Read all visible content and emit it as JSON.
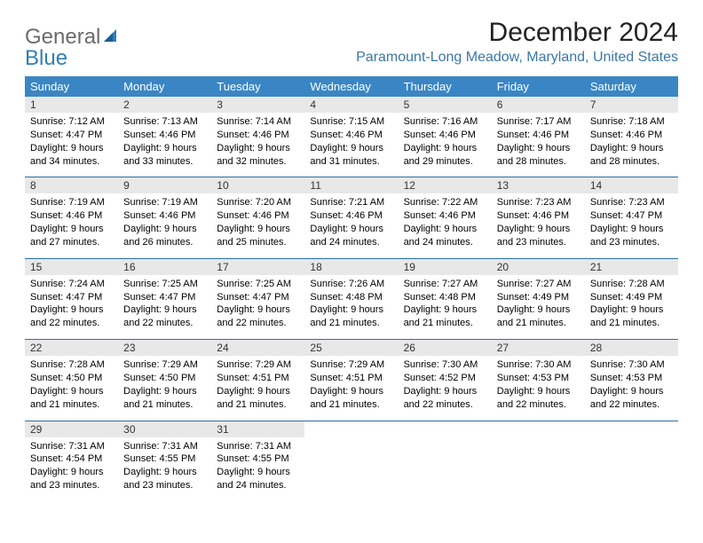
{
  "logo": {
    "general": "General",
    "blue": "Blue"
  },
  "title": "December 2024",
  "location": "Paramount-Long Meadow, Maryland, United States",
  "colors": {
    "header_bg": "#3a86c4",
    "header_text": "#ffffff",
    "daynum_bg": "#e8e8e8",
    "row_border": "#2d6ea8",
    "location_color": "#3b77a8",
    "logo_gray": "#6b6b6b",
    "logo_blue": "#2f7fb6"
  },
  "weekdays": [
    "Sunday",
    "Monday",
    "Tuesday",
    "Wednesday",
    "Thursday",
    "Friday",
    "Saturday"
  ],
  "weeks": [
    [
      {
        "n": "1",
        "sunrise": "Sunrise: 7:12 AM",
        "sunset": "Sunset: 4:47 PM",
        "day1": "Daylight: 9 hours",
        "day2": "and 34 minutes."
      },
      {
        "n": "2",
        "sunrise": "Sunrise: 7:13 AM",
        "sunset": "Sunset: 4:46 PM",
        "day1": "Daylight: 9 hours",
        "day2": "and 33 minutes."
      },
      {
        "n": "3",
        "sunrise": "Sunrise: 7:14 AM",
        "sunset": "Sunset: 4:46 PM",
        "day1": "Daylight: 9 hours",
        "day2": "and 32 minutes."
      },
      {
        "n": "4",
        "sunrise": "Sunrise: 7:15 AM",
        "sunset": "Sunset: 4:46 PM",
        "day1": "Daylight: 9 hours",
        "day2": "and 31 minutes."
      },
      {
        "n": "5",
        "sunrise": "Sunrise: 7:16 AM",
        "sunset": "Sunset: 4:46 PM",
        "day1": "Daylight: 9 hours",
        "day2": "and 29 minutes."
      },
      {
        "n": "6",
        "sunrise": "Sunrise: 7:17 AM",
        "sunset": "Sunset: 4:46 PM",
        "day1": "Daylight: 9 hours",
        "day2": "and 28 minutes."
      },
      {
        "n": "7",
        "sunrise": "Sunrise: 7:18 AM",
        "sunset": "Sunset: 4:46 PM",
        "day1": "Daylight: 9 hours",
        "day2": "and 28 minutes."
      }
    ],
    [
      {
        "n": "8",
        "sunrise": "Sunrise: 7:19 AM",
        "sunset": "Sunset: 4:46 PM",
        "day1": "Daylight: 9 hours",
        "day2": "and 27 minutes."
      },
      {
        "n": "9",
        "sunrise": "Sunrise: 7:19 AM",
        "sunset": "Sunset: 4:46 PM",
        "day1": "Daylight: 9 hours",
        "day2": "and 26 minutes."
      },
      {
        "n": "10",
        "sunrise": "Sunrise: 7:20 AM",
        "sunset": "Sunset: 4:46 PM",
        "day1": "Daylight: 9 hours",
        "day2": "and 25 minutes."
      },
      {
        "n": "11",
        "sunrise": "Sunrise: 7:21 AM",
        "sunset": "Sunset: 4:46 PM",
        "day1": "Daylight: 9 hours",
        "day2": "and 24 minutes."
      },
      {
        "n": "12",
        "sunrise": "Sunrise: 7:22 AM",
        "sunset": "Sunset: 4:46 PM",
        "day1": "Daylight: 9 hours",
        "day2": "and 24 minutes."
      },
      {
        "n": "13",
        "sunrise": "Sunrise: 7:23 AM",
        "sunset": "Sunset: 4:46 PM",
        "day1": "Daylight: 9 hours",
        "day2": "and 23 minutes."
      },
      {
        "n": "14",
        "sunrise": "Sunrise: 7:23 AM",
        "sunset": "Sunset: 4:47 PM",
        "day1": "Daylight: 9 hours",
        "day2": "and 23 minutes."
      }
    ],
    [
      {
        "n": "15",
        "sunrise": "Sunrise: 7:24 AM",
        "sunset": "Sunset: 4:47 PM",
        "day1": "Daylight: 9 hours",
        "day2": "and 22 minutes."
      },
      {
        "n": "16",
        "sunrise": "Sunrise: 7:25 AM",
        "sunset": "Sunset: 4:47 PM",
        "day1": "Daylight: 9 hours",
        "day2": "and 22 minutes."
      },
      {
        "n": "17",
        "sunrise": "Sunrise: 7:25 AM",
        "sunset": "Sunset: 4:47 PM",
        "day1": "Daylight: 9 hours",
        "day2": "and 22 minutes."
      },
      {
        "n": "18",
        "sunrise": "Sunrise: 7:26 AM",
        "sunset": "Sunset: 4:48 PM",
        "day1": "Daylight: 9 hours",
        "day2": "and 21 minutes."
      },
      {
        "n": "19",
        "sunrise": "Sunrise: 7:27 AM",
        "sunset": "Sunset: 4:48 PM",
        "day1": "Daylight: 9 hours",
        "day2": "and 21 minutes."
      },
      {
        "n": "20",
        "sunrise": "Sunrise: 7:27 AM",
        "sunset": "Sunset: 4:49 PM",
        "day1": "Daylight: 9 hours",
        "day2": "and 21 minutes."
      },
      {
        "n": "21",
        "sunrise": "Sunrise: 7:28 AM",
        "sunset": "Sunset: 4:49 PM",
        "day1": "Daylight: 9 hours",
        "day2": "and 21 minutes."
      }
    ],
    [
      {
        "n": "22",
        "sunrise": "Sunrise: 7:28 AM",
        "sunset": "Sunset: 4:50 PM",
        "day1": "Daylight: 9 hours",
        "day2": "and 21 minutes."
      },
      {
        "n": "23",
        "sunrise": "Sunrise: 7:29 AM",
        "sunset": "Sunset: 4:50 PM",
        "day1": "Daylight: 9 hours",
        "day2": "and 21 minutes."
      },
      {
        "n": "24",
        "sunrise": "Sunrise: 7:29 AM",
        "sunset": "Sunset: 4:51 PM",
        "day1": "Daylight: 9 hours",
        "day2": "and 21 minutes."
      },
      {
        "n": "25",
        "sunrise": "Sunrise: 7:29 AM",
        "sunset": "Sunset: 4:51 PM",
        "day1": "Daylight: 9 hours",
        "day2": "and 21 minutes."
      },
      {
        "n": "26",
        "sunrise": "Sunrise: 7:30 AM",
        "sunset": "Sunset: 4:52 PM",
        "day1": "Daylight: 9 hours",
        "day2": "and 22 minutes."
      },
      {
        "n": "27",
        "sunrise": "Sunrise: 7:30 AM",
        "sunset": "Sunset: 4:53 PM",
        "day1": "Daylight: 9 hours",
        "day2": "and 22 minutes."
      },
      {
        "n": "28",
        "sunrise": "Sunrise: 7:30 AM",
        "sunset": "Sunset: 4:53 PM",
        "day1": "Daylight: 9 hours",
        "day2": "and 22 minutes."
      }
    ],
    [
      {
        "n": "29",
        "sunrise": "Sunrise: 7:31 AM",
        "sunset": "Sunset: 4:54 PM",
        "day1": "Daylight: 9 hours",
        "day2": "and 23 minutes."
      },
      {
        "n": "30",
        "sunrise": "Sunrise: 7:31 AM",
        "sunset": "Sunset: 4:55 PM",
        "day1": "Daylight: 9 hours",
        "day2": "and 23 minutes."
      },
      {
        "n": "31",
        "sunrise": "Sunrise: 7:31 AM",
        "sunset": "Sunset: 4:55 PM",
        "day1": "Daylight: 9 hours",
        "day2": "and 24 minutes."
      },
      null,
      null,
      null,
      null
    ]
  ]
}
